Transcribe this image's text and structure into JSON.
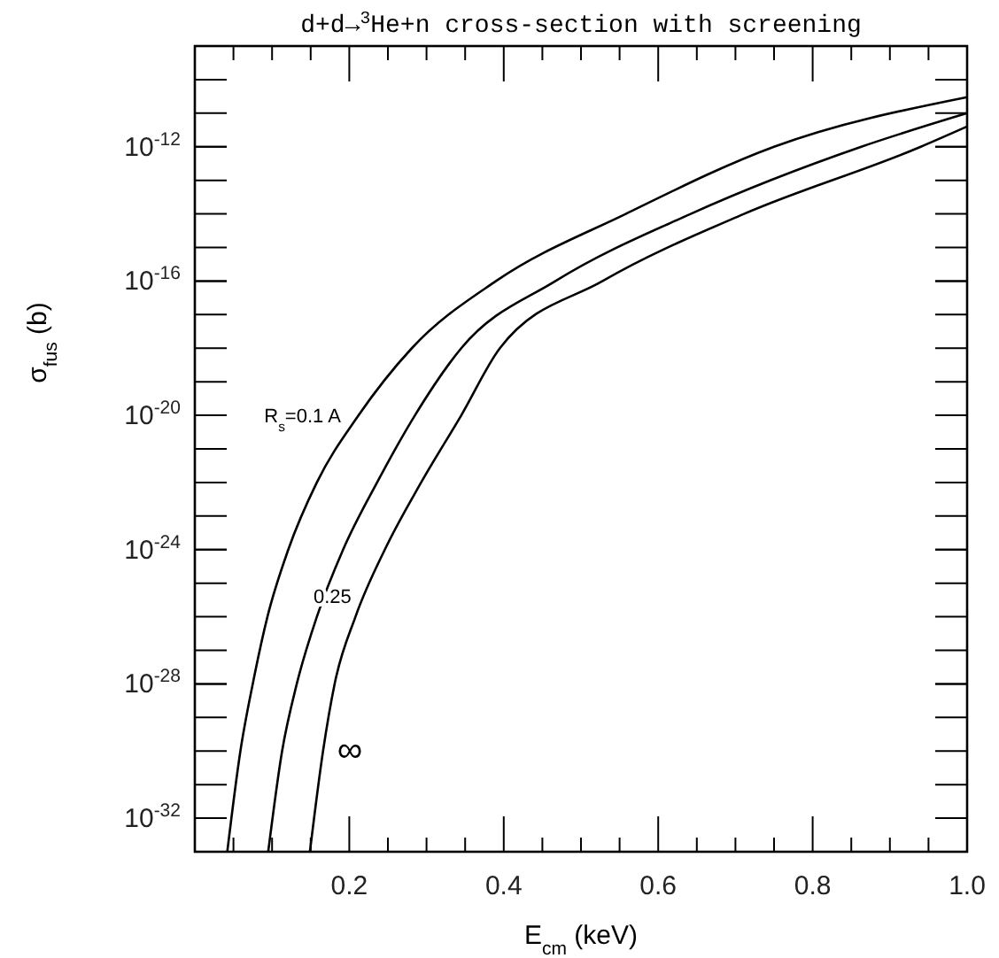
{
  "chart_data": {
    "type": "line",
    "title": "d+d→$^{3}$He+n cross-section with screening",
    "xlabel": "E$_{cm}$  (keV)",
    "ylabel": "σ$_{fus}$  (b)",
    "log": "y",
    "xlim": [
      0,
      1
    ],
    "ylim": [
      1e-33,
      1e-09
    ],
    "xticks": [
      {
        "value": 0.05,
        "label": null
      },
      {
        "value": 0.1,
        "label": null
      },
      {
        "value": 0.15,
        "label": null
      },
      {
        "value": 0.2,
        "label": "0.2"
      },
      {
        "value": 0.25,
        "label": null
      },
      {
        "value": 0.3,
        "label": null
      },
      {
        "value": 0.35,
        "label": null
      },
      {
        "value": 0.4,
        "label": "0.4"
      },
      {
        "value": 0.45,
        "label": null
      },
      {
        "value": 0.5,
        "label": null
      },
      {
        "value": 0.55,
        "label": null
      },
      {
        "value": 0.6,
        "label": "0.6"
      },
      {
        "value": 0.65,
        "label": null
      },
      {
        "value": 0.7,
        "label": null
      },
      {
        "value": 0.75,
        "label": null
      },
      {
        "value": 0.8,
        "label": "0.8"
      },
      {
        "value": 0.85,
        "label": null
      },
      {
        "value": 0.9,
        "label": null
      },
      {
        "value": 0.95,
        "label": null
      },
      {
        "value": 1,
        "label": "1.0"
      }
    ],
    "yticks": [
      {
        "value": 1e-32,
        "label": "10$^{-32}$"
      },
      {
        "value": 1e-28,
        "label": "10$^{-28}$"
      },
      {
        "value": 1e-24,
        "label": "10$^{-24}$"
      },
      {
        "value": 1e-20,
        "label": "10$^{-20}$"
      },
      {
        "value": 1e-16,
        "label": "10$^{-16}$"
      },
      {
        "value": 1e-12,
        "label": "10$^{-12}$"
      }
    ],
    "series": [
      {
        "name": "R$_{s}$=0.1 A",
        "color": "#000000",
        "x": [
          0.042,
          0.059,
          0.075,
          0.094,
          0.121,
          0.158,
          0.212,
          0.281,
          0.39,
          0.558,
          0.75,
          1.0
        ],
        "values": [
          1e-33,
          1e-30,
          1e-28,
          1e-26,
          1e-24,
          1e-22,
          1e-20,
          1e-18,
          1e-16,
          1e-14,
          1e-12,
          3e-11
        ]
      },
      {
        "name": "0.25",
        "color": "#000000",
        "x": [
          0.095,
          0.113,
          0.132,
          0.158,
          0.192,
          0.236,
          0.285,
          0.345,
          0.467,
          0.642,
          0.863,
          1.0
        ],
        "values": [
          1e-33,
          1e-30,
          1e-28,
          1e-26,
          1e-24,
          1e-22,
          1e-20,
          1e-18,
          1e-16,
          1e-14,
          1e-12,
          1e-11
        ]
      },
      {
        "name": "∞",
        "color": "#000000",
        "x": [
          0.149,
          0.166,
          0.181,
          0.208,
          0.246,
          0.293,
          0.345,
          0.395,
          0.528,
          0.711,
          0.94,
          1.0
        ],
        "values": [
          1e-33,
          1e-30,
          1e-28,
          1e-26,
          1e-24,
          1e-22,
          1e-20,
          1e-18,
          1e-16,
          1e-14,
          1e-12,
          4e-12
        ]
      }
    ]
  }
}
